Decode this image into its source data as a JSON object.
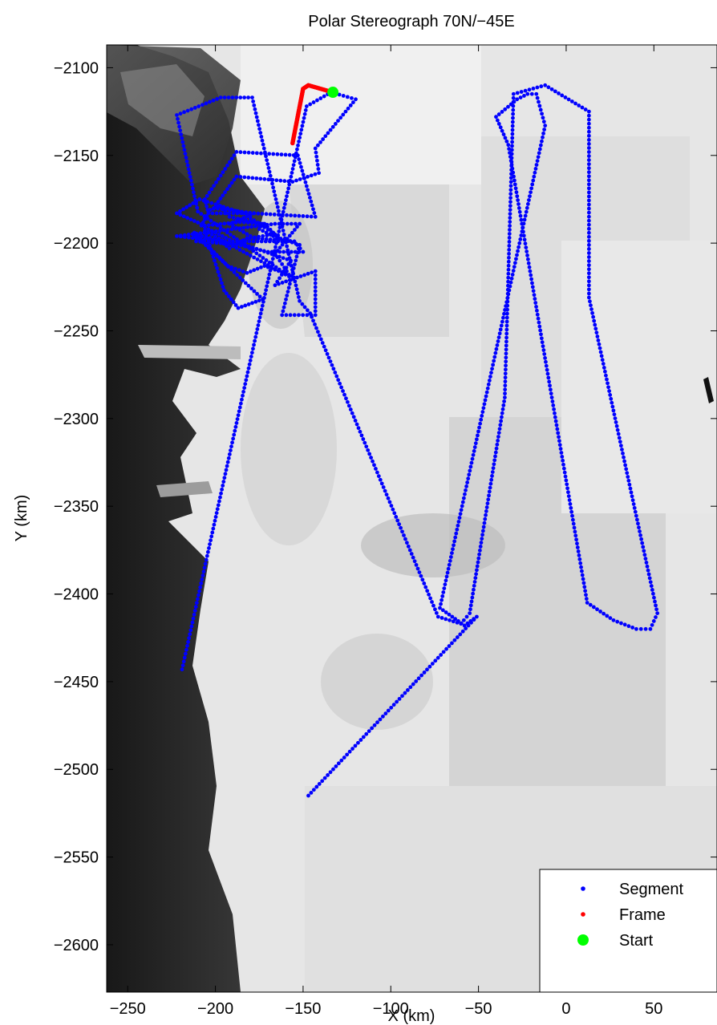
{
  "chart_data": {
    "type": "scatter",
    "title": "Polar Stereograph 70N/−45E",
    "xlabel": "X (km)",
    "ylabel": "Y (km)",
    "xlim": [
      -262,
      86
    ],
    "ylim": [
      -2627,
      -2087
    ],
    "xticks": [
      -250,
      -200,
      -150,
      -100,
      -50,
      0,
      50
    ],
    "xtick_labels": [
      "−250",
      "−200",
      "−150",
      "−100",
      "−50",
      "0",
      "50"
    ],
    "yticks": [
      -2100,
      -2150,
      -2200,
      -2250,
      -2300,
      -2350,
      -2400,
      -2450,
      -2500,
      -2550,
      -2600
    ],
    "ytick_labels": [
      "−2100",
      "−2150",
      "−2200",
      "−2250",
      "−2300",
      "−2350",
      "−2400",
      "−2450",
      "−2500",
      "−2550",
      "−2600"
    ],
    "grid": false,
    "legend_position": "bottom-right",
    "background": "satellite imagery of the Greenland coast: dark ice-free land on the left, bright ice sheet to the right",
    "series": [
      {
        "name": "Segment",
        "marker": "dot",
        "color": "#0000ff",
        "x": [
          -219,
          -148,
          -134,
          -120,
          -143,
          -141,
          -156,
          -188,
          -201,
          -178,
          -143,
          -153,
          -188,
          -206,
          -204,
          -178,
          -192,
          -180,
          -192,
          -197,
          -222,
          -166,
          -152,
          -166,
          -158,
          -172,
          -182,
          -193,
          -212,
          -211,
          -183,
          -157,
          -166,
          -143,
          -143,
          -162,
          -152,
          -167,
          -175,
          -173,
          -192,
          -197,
          -203,
          -208,
          -190,
          -162,
          -172,
          -186,
          -206,
          -222,
          -209,
          -184,
          -166,
          -180,
          -155,
          -150,
          -170,
          -212,
          -173,
          -187,
          -195,
          -206,
          -158,
          -210,
          -222,
          -197,
          -179,
          -152,
          -146,
          -73,
          -60,
          -55,
          -35,
          -30,
          -12,
          13,
          13,
          52,
          48,
          40,
          27,
          12,
          -33,
          -40,
          -28,
          -22,
          -17,
          -12,
          -72,
          -58,
          -51,
          -147
        ],
        "y": [
          -2443,
          -2122,
          -2114,
          -2118,
          -2146,
          -2160,
          -2165,
          -2162,
          -2180,
          -2183,
          -2185,
          -2150,
          -2148,
          -2175,
          -2183,
          -2183,
          -2189,
          -2196,
          -2203,
          -2199,
          -2196,
          -2189,
          -2189,
          -2206,
          -2218,
          -2213,
          -2217,
          -2213,
          -2194,
          -2199,
          -2201,
          -2210,
          -2224,
          -2216,
          -2241,
          -2241,
          -2201,
          -2196,
          -2192,
          -2189,
          -2185,
          -2179,
          -2181,
          -2190,
          -2199,
          -2199,
          -2189,
          -2188,
          -2190,
          -2183,
          -2175,
          -2183,
          -2195,
          -2197,
          -2199,
          -2205,
          -2205,
          -2195,
          -2232,
          -2237,
          -2227,
          -2193,
          -2219,
          -2182,
          -2127,
          -2117,
          -2117,
          -2233,
          -2240,
          -2413,
          -2417,
          -2411,
          -2288,
          -2115,
          -2110,
          -2125,
          -2231,
          -2411,
          -2420,
          -2420,
          -2415,
          -2405,
          -2144,
          -2128,
          -2118,
          -2115,
          -2115,
          -2133,
          -2408,
          -2418,
          -2413,
          -2515
        ]
      },
      {
        "name": "Frame",
        "marker": "dot",
        "color": "#ff0000",
        "x": [
          -156,
          -150,
          -147,
          -133
        ],
        "y": [
          -2143,
          -2112,
          -2110,
          -2114
        ]
      },
      {
        "name": "Start",
        "marker": "circle",
        "color": "#00ff00",
        "x": [
          -133
        ],
        "y": [
          -2114
        ]
      }
    ]
  }
}
